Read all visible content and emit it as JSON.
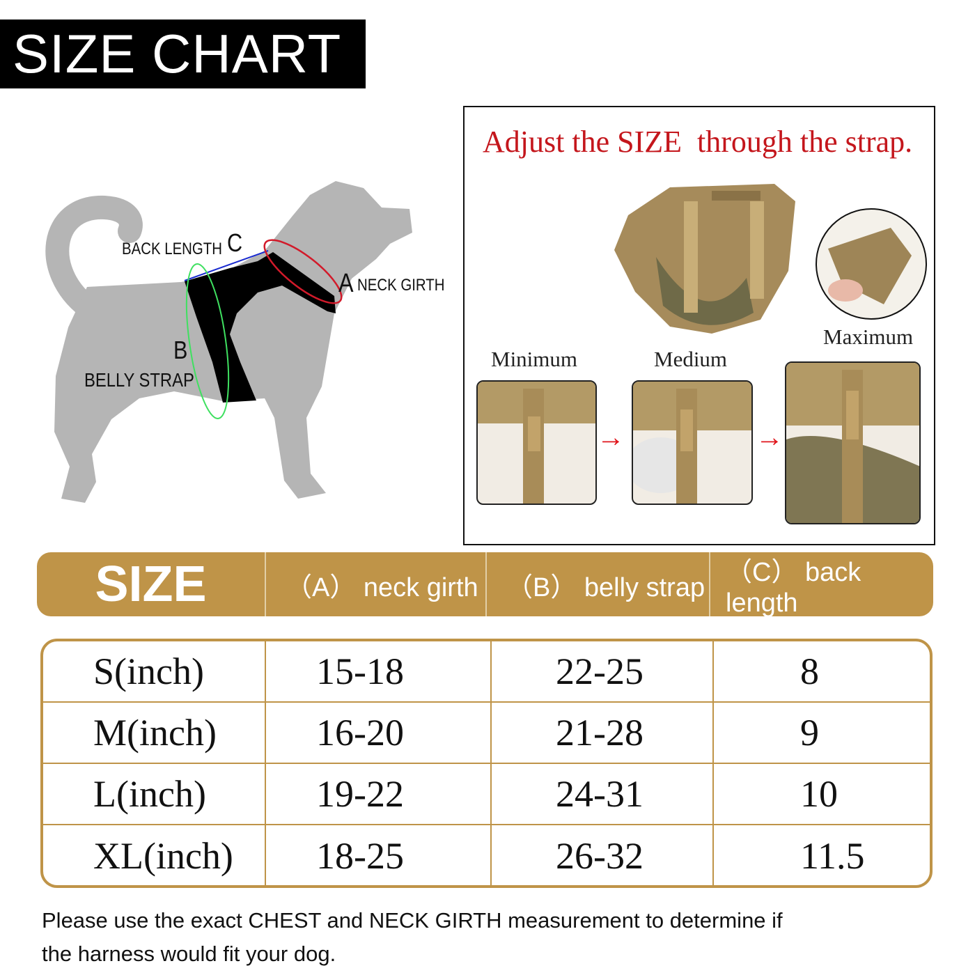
{
  "title": "SIZE CHART",
  "diagram": {
    "back_length": "BACK LENGTH",
    "c": "C",
    "a": "A",
    "neck_girth": "NECK GIRTH",
    "b": "B",
    "belly_strap": "BELLY STRAP"
  },
  "adjust": {
    "title": "Adjust the SIZE  through the strap.",
    "minimum": "Minimum",
    "medium": "Medium",
    "maximum": "Maximum"
  },
  "table": {
    "headers": [
      "SIZE",
      "（A） neck girth",
      "（B） belly strap",
      "（C） back length"
    ],
    "rows": [
      [
        "S(inch)",
        "15-18",
        "22-25",
        "8"
      ],
      [
        "M(inch)",
        "16-20",
        "21-28",
        "9"
      ],
      [
        "L(inch)",
        "19-22",
        "24-31",
        "10"
      ],
      [
        "XL(inch)",
        "18-25",
        "26-32",
        "11.5"
      ]
    ]
  },
  "note": "Please use the exact CHEST and NECK GIRTH measurement to determine if the harness would fit your dog.",
  "colors": {
    "gold": "#bf9448",
    "red": "#c4161c",
    "dog": "#b5b5b5"
  }
}
